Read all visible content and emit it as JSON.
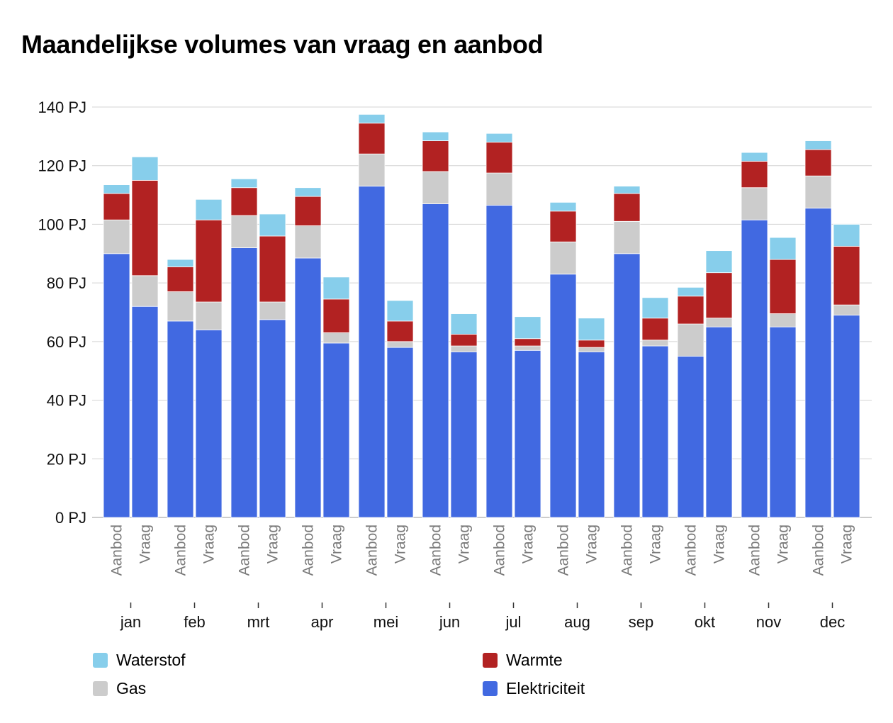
{
  "chart_data": {
    "type": "bar",
    "stacked": true,
    "title": "Maandelijkse volumes van vraag en aanbod",
    "unit": "PJ",
    "ylim": [
      0,
      140
    ],
    "yticks": [
      0,
      20,
      40,
      60,
      80,
      100,
      120,
      140
    ],
    "grid": true,
    "legend_position": "bottom",
    "months": [
      "jan",
      "feb",
      "mrt",
      "apr",
      "mei",
      "jun",
      "jul",
      "aug",
      "sep",
      "okt",
      "nov",
      "dec"
    ],
    "bar_labels": [
      "Aanbod",
      "Vraag"
    ],
    "series": [
      {
        "name": "Elektriciteit",
        "color": "#4169e1",
        "aanbod": [
          90,
          67,
          92,
          88.5,
          113,
          107,
          106.5,
          83,
          90,
          55,
          101.5,
          105.5
        ],
        "vraag": [
          72,
          64,
          67.5,
          59.5,
          58,
          56.5,
          57,
          56.5,
          58.5,
          65,
          65,
          69
        ]
      },
      {
        "name": "Gas",
        "color": "#cccccc",
        "aanbod": [
          11.5,
          10,
          11,
          11,
          11,
          11,
          11,
          11,
          11,
          11,
          11,
          11
        ],
        "vraag": [
          10.5,
          9.5,
          6,
          3.5,
          2,
          2,
          1.5,
          1.5,
          2,
          3,
          4.5,
          3.5
        ]
      },
      {
        "name": "Warmte",
        "color": "#b22222",
        "aanbod": [
          9,
          8.5,
          9.5,
          10,
          10.5,
          10.5,
          10.5,
          10.5,
          9.5,
          9.5,
          9,
          9
        ],
        "vraag": [
          32.5,
          28,
          22.5,
          11.5,
          7,
          4,
          2.5,
          2.5,
          7.5,
          15.5,
          18.5,
          20
        ]
      },
      {
        "name": "Waterstof",
        "color": "#87ceeb",
        "aanbod": [
          3,
          2.5,
          3,
          3,
          3,
          3,
          3,
          3,
          2.5,
          3,
          3,
          3
        ],
        "vraag": [
          8,
          7,
          7.5,
          7.5,
          7,
          7,
          7.5,
          7.5,
          7,
          7.5,
          7.5,
          7.5
        ]
      }
    ],
    "legend": [
      "Waterstof",
      "Warmte",
      "Gas",
      "Elektriciteit"
    ]
  }
}
